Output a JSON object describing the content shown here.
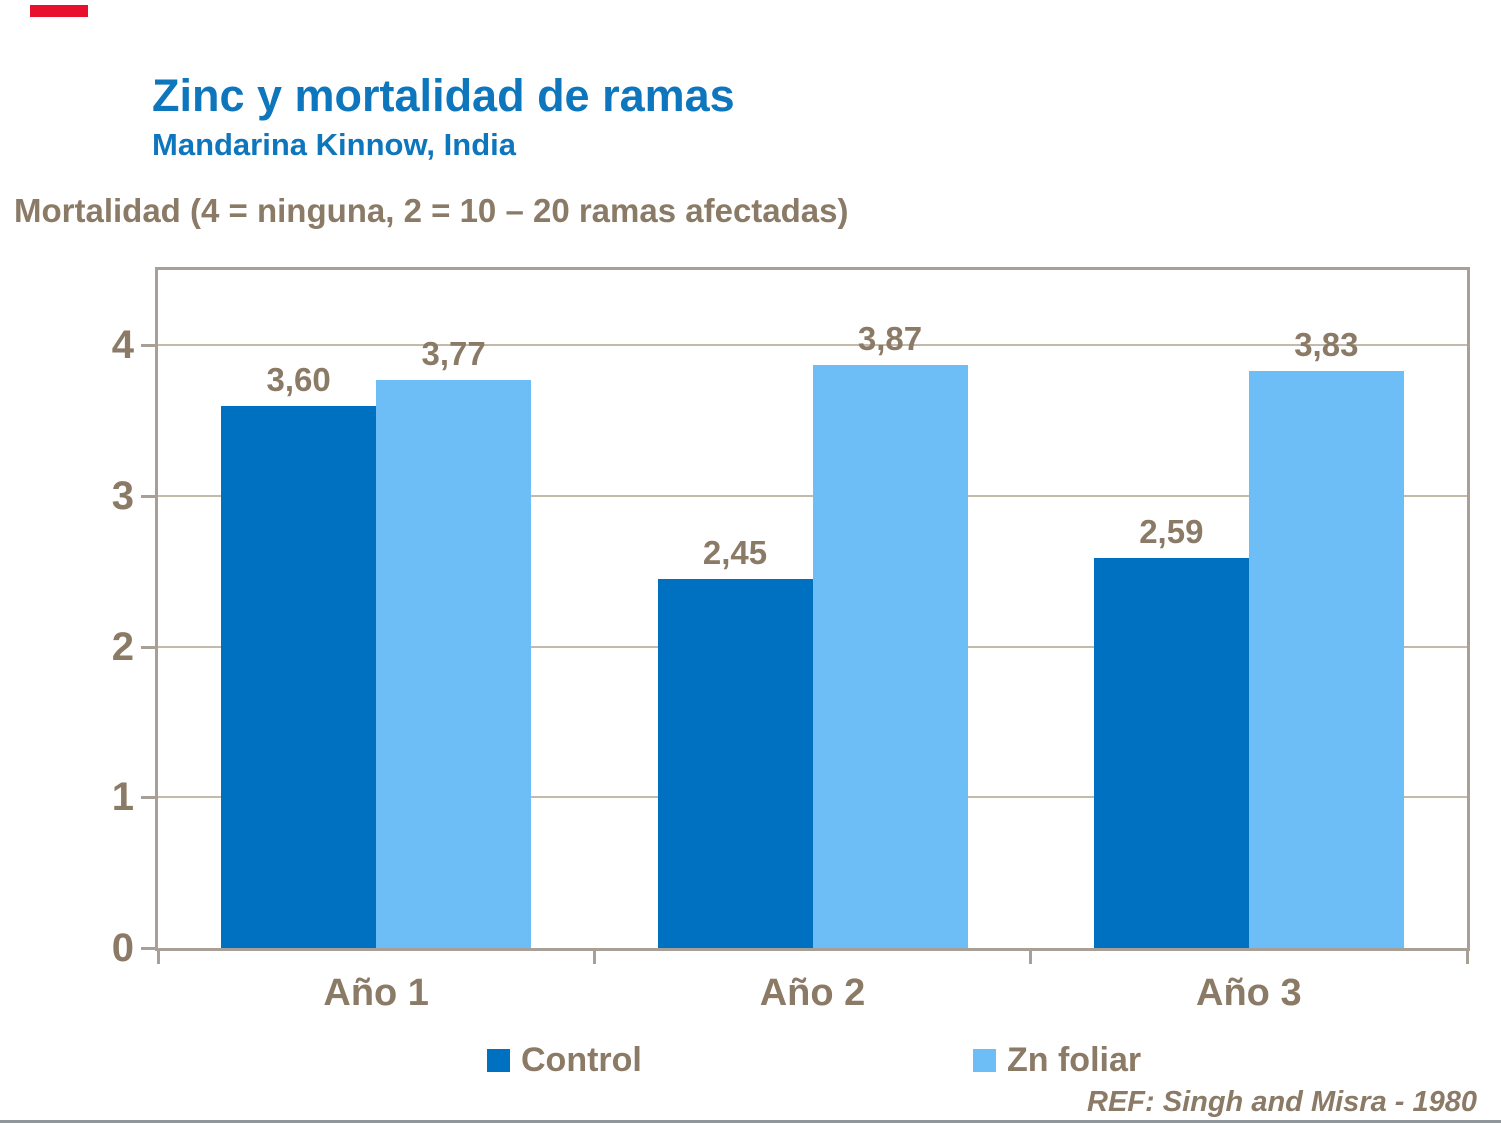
{
  "slide": {
    "title": "Zinc y mortalidad de ramas",
    "subtitle": "Mandarina Kinnow, India",
    "axis_title": "Mortalidad (4 = ninguna, 2 = 10 – 20 ramas afectadas)",
    "reference": "REF: Singh and Misra - 1980",
    "colors": {
      "title_blue": "#0e76bd",
      "text_brown": "#8a7a66",
      "control_blue": "#0070c0",
      "zn_foliar_blue": "#6dbef7",
      "red_mark": "#e8112d",
      "plot_border_gray": "#a8a096",
      "gridline_tan": "#c4baaa",
      "bottom_line_gray": "#8f979c"
    }
  },
  "chart_data": {
    "type": "bar",
    "title": "Zinc y mortalidad de ramas — Mandarina Kinnow, India",
    "ylabel": "Mortalidad (4 = ninguna, 2 = 10 – 20 ramas afectadas)",
    "categories": [
      "Año 1",
      "Año 2",
      "Año 3"
    ],
    "series": [
      {
        "name": "Control",
        "color": "#0070c0",
        "values": [
          3.6,
          2.45,
          2.59
        ],
        "labels": [
          "3,60",
          "2,45",
          "2,59"
        ]
      },
      {
        "name": "Zn foliar",
        "color": "#6dbef7",
        "values": [
          3.77,
          3.87,
          3.83
        ],
        "labels": [
          "3,77",
          "3,87",
          "3,83"
        ]
      }
    ],
    "y_ticks": [
      "0",
      "1",
      "2",
      "3",
      "4"
    ],
    "ylim": [
      0,
      4.5
    ],
    "grid": true,
    "legend_position": "bottom",
    "annotation": "REF: Singh and Misra - 1980"
  }
}
